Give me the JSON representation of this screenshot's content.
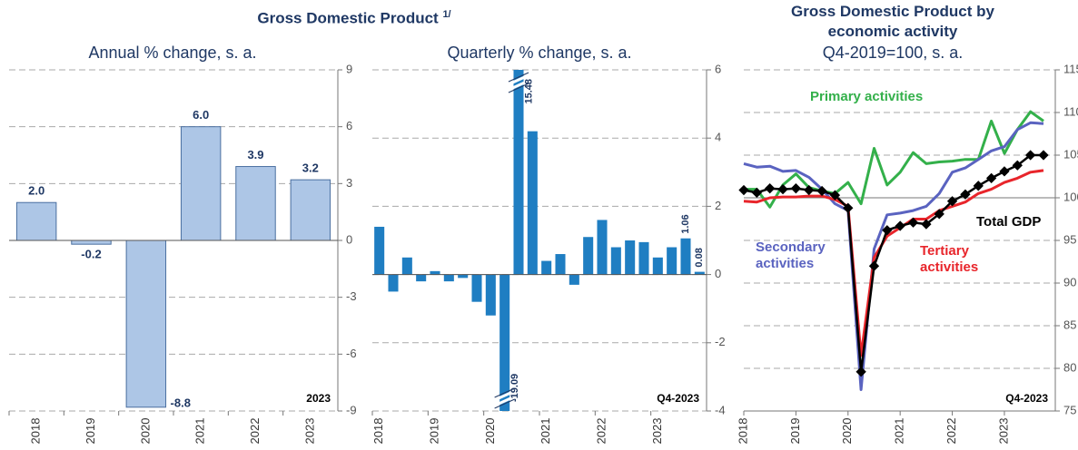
{
  "title": "Gross Domestic Product",
  "title_note": "1/",
  "chart_data": [
    {
      "type": "bar",
      "subtitle": "Annual % change, s. a.",
      "categories": [
        "2018",
        "2019",
        "2020",
        "2021",
        "2022",
        "2023"
      ],
      "values": [
        2.0,
        -0.2,
        -8.8,
        6.0,
        3.9,
        3.2
      ],
      "value_labels": [
        "2.0",
        "-0.2",
        "-8.8",
        "6.0",
        "3.9",
        "3.2"
      ],
      "color": "#adc6e6",
      "ylim": [
        -9,
        9
      ],
      "yticks": [
        -9,
        -6,
        -3,
        0,
        3,
        6,
        9
      ],
      "grid": true,
      "annotation": "2023"
    },
    {
      "type": "bar",
      "subtitle": "Quarterly % change, s. a.",
      "categories": [
        "2018",
        null,
        null,
        null,
        "2019",
        null,
        null,
        null,
        "2020",
        null,
        null,
        null,
        "2021",
        null,
        null,
        null,
        "2022",
        null,
        null,
        null,
        "2023",
        null,
        null,
        null
      ],
      "values": [
        1.4,
        -0.5,
        0.5,
        -0.2,
        0.1,
        -0.2,
        -0.1,
        -0.8,
        -1.2,
        -19.09,
        15.48,
        4.2,
        0.4,
        0.6,
        -0.3,
        1.1,
        1.6,
        0.8,
        1.0,
        0.95,
        0.5,
        0.8,
        1.06,
        0.08
      ],
      "value_labels": [
        null,
        null,
        null,
        null,
        null,
        null,
        null,
        null,
        null,
        "-19.09",
        "15.48",
        null,
        null,
        null,
        null,
        null,
        null,
        null,
        null,
        null,
        null,
        null,
        "1.06",
        "0.08"
      ],
      "color": "#1f7ec2",
      "ylim": [
        -4,
        6
      ],
      "yticks": [
        -4,
        -2,
        0,
        2,
        4,
        6
      ],
      "grid": true,
      "annotation": "Q4-2023"
    },
    {
      "type": "line",
      "title": "Gross Domestic Product by economic activity",
      "subtitle": "Q4-2019=100, s. a.",
      "x": [
        "2018",
        null,
        null,
        null,
        "2019",
        null,
        null,
        null,
        "2020",
        null,
        null,
        null,
        "2021",
        null,
        null,
        null,
        "2022",
        null,
        null,
        null,
        "2023",
        null,
        null,
        null
      ],
      "series": [
        {
          "name": "Primary activities",
          "color": "#33b04a",
          "values": [
            101.0,
            101.0,
            98.9,
            101.5,
            102.8,
            101.2,
            100.8,
            100.5,
            101.8,
            99.3,
            105.8,
            101.5,
            103.0,
            105.3,
            104.0,
            104.2,
            104.3,
            104.5,
            104.5,
            109.0,
            105.2,
            108.0,
            110.1,
            109.0
          ]
        },
        {
          "name": "Secondary activities",
          "color": "#5a63c0",
          "values": [
            104.0,
            103.6,
            103.7,
            103.1,
            103.2,
            102.4,
            101.0,
            99.3,
            98.5,
            77.5,
            94.0,
            98.0,
            98.2,
            98.5,
            99.0,
            100.5,
            103.0,
            103.5,
            104.5,
            105.5,
            106.0,
            108.0,
            108.8,
            108.7
          ]
        },
        {
          "name": "Tertiary activities",
          "color": "#e8252b",
          "values": [
            99.6,
            99.5,
            100.0,
            100.1,
            100.1,
            100.2,
            100.2,
            99.8,
            99.0,
            81.5,
            93.0,
            95.5,
            96.5,
            97.5,
            97.5,
            98.5,
            99.0,
            99.5,
            100.5,
            101.0,
            101.8,
            102.3,
            103.0,
            103.2
          ]
        },
        {
          "name": "Total GDP",
          "color": "#000000",
          "marker": "diamond",
          "values": [
            100.9,
            100.6,
            101.1,
            101.0,
            101.1,
            100.9,
            100.8,
            100.3,
            98.8,
            79.6,
            92.0,
            96.2,
            96.7,
            97.1,
            96.9,
            98.1,
            99.6,
            100.4,
            101.4,
            102.3,
            103.1,
            103.8,
            105.0,
            105.0
          ]
        }
      ],
      "ylim": [
        75,
        115
      ],
      "yticks": [
        75,
        80,
        85,
        90,
        95,
        100,
        105,
        110,
        115
      ],
      "grid": true,
      "baseline": 100,
      "annotation": "Q4-2023"
    }
  ]
}
